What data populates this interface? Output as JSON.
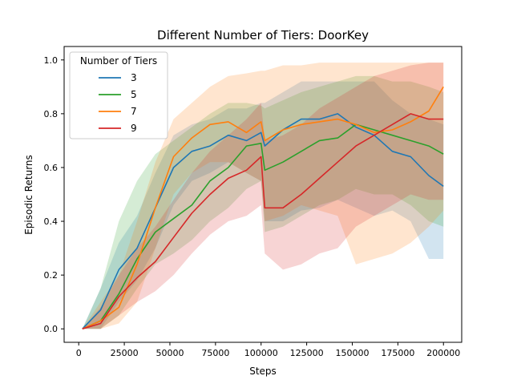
{
  "chart_data": {
    "type": "line",
    "title": "Different Number of Tiers: DoorKey",
    "xlabel": "Steps",
    "ylabel": "Episodic Returns",
    "xlim": [
      -8000,
      210000
    ],
    "ylim": [
      -0.05,
      1.05
    ],
    "xticks": [
      0,
      25000,
      50000,
      75000,
      100000,
      125000,
      150000,
      175000,
      200000
    ],
    "yticks": [
      0.0,
      0.2,
      0.4,
      0.6,
      0.8,
      1.0
    ],
    "ytick_labels": [
      "0.0",
      "0.2",
      "0.4",
      "0.6",
      "0.8",
      "1.0"
    ],
    "grid": false,
    "legend": {
      "title": "Number of Tiers",
      "placement": "top-left"
    },
    "x": [
      2000,
      12000,
      22000,
      32000,
      42000,
      52000,
      62000,
      72000,
      82000,
      92000,
      100000,
      102000,
      112000,
      122000,
      132000,
      142000,
      152000,
      162000,
      172000,
      182000,
      192000,
      200000
    ],
    "series": [
      {
        "name": "3",
        "color": "#1f77b4",
        "values": [
          0.0,
          0.07,
          0.22,
          0.3,
          0.45,
          0.6,
          0.66,
          0.68,
          0.72,
          0.7,
          0.73,
          0.68,
          0.74,
          0.78,
          0.78,
          0.8,
          0.75,
          0.72,
          0.66,
          0.64,
          0.57,
          0.53
        ],
        "lower": [
          0.0,
          0.0,
          0.1,
          0.18,
          0.3,
          0.46,
          0.55,
          0.58,
          0.62,
          0.58,
          0.55,
          0.4,
          0.4,
          0.44,
          0.45,
          0.48,
          0.45,
          0.42,
          0.44,
          0.4,
          0.26,
          0.26
        ],
        "upper": [
          0.0,
          0.15,
          0.32,
          0.42,
          0.58,
          0.72,
          0.76,
          0.78,
          0.82,
          0.82,
          0.84,
          0.84,
          0.88,
          0.92,
          0.92,
          0.92,
          0.92,
          0.92,
          0.85,
          0.8,
          0.78,
          0.76
        ]
      },
      {
        "name": "5",
        "color": "#2ca02c",
        "values": [
          0.0,
          0.03,
          0.13,
          0.26,
          0.36,
          0.41,
          0.46,
          0.55,
          0.6,
          0.68,
          0.69,
          0.59,
          0.62,
          0.66,
          0.7,
          0.71,
          0.76,
          0.74,
          0.72,
          0.7,
          0.68,
          0.65
        ],
        "lower": [
          0.0,
          0.0,
          0.05,
          0.15,
          0.24,
          0.28,
          0.33,
          0.4,
          0.45,
          0.52,
          0.55,
          0.36,
          0.38,
          0.42,
          0.46,
          0.48,
          0.52,
          0.5,
          0.5,
          0.46,
          0.4,
          0.38
        ],
        "upper": [
          0.0,
          0.15,
          0.4,
          0.55,
          0.65,
          0.7,
          0.75,
          0.8,
          0.84,
          0.84,
          0.83,
          0.82,
          0.85,
          0.88,
          0.9,
          0.92,
          0.94,
          0.94,
          0.92,
          0.92,
          0.9,
          0.88
        ]
      },
      {
        "name": "7",
        "color": "#ff7f0e",
        "values": [
          0.0,
          0.03,
          0.08,
          0.24,
          0.45,
          0.64,
          0.71,
          0.76,
          0.77,
          0.73,
          0.77,
          0.7,
          0.74,
          0.76,
          0.77,
          0.78,
          0.76,
          0.73,
          0.74,
          0.77,
          0.81,
          0.9
        ],
        "lower": [
          0.0,
          0.0,
          0.02,
          0.1,
          0.3,
          0.5,
          0.58,
          0.62,
          0.62,
          0.58,
          0.55,
          0.4,
          0.42,
          0.46,
          0.44,
          0.42,
          0.24,
          0.26,
          0.28,
          0.32,
          0.38,
          0.44
        ],
        "upper": [
          0.0,
          0.1,
          0.2,
          0.4,
          0.62,
          0.78,
          0.84,
          0.9,
          0.94,
          0.95,
          0.96,
          0.96,
          0.98,
          0.98,
          0.99,
          0.99,
          0.99,
          0.99,
          0.99,
          0.99,
          0.99,
          0.99
        ]
      },
      {
        "name": "9",
        "color": "#d62728",
        "values": [
          0.0,
          0.02,
          0.12,
          0.19,
          0.25,
          0.34,
          0.43,
          0.5,
          0.56,
          0.59,
          0.64,
          0.45,
          0.45,
          0.5,
          0.56,
          0.62,
          0.68,
          0.72,
          0.76,
          0.8,
          0.78,
          0.78
        ],
        "lower": [
          0.0,
          0.0,
          0.05,
          0.1,
          0.14,
          0.2,
          0.28,
          0.35,
          0.4,
          0.42,
          0.46,
          0.28,
          0.22,
          0.24,
          0.28,
          0.3,
          0.38,
          0.42,
          0.46,
          0.5,
          0.48,
          0.48
        ],
        "upper": [
          0.0,
          0.08,
          0.2,
          0.3,
          0.38,
          0.48,
          0.58,
          0.66,
          0.72,
          0.78,
          0.84,
          0.7,
          0.72,
          0.76,
          0.82,
          0.86,
          0.9,
          0.94,
          0.96,
          0.98,
          0.99,
          0.99
        ]
      }
    ]
  }
}
